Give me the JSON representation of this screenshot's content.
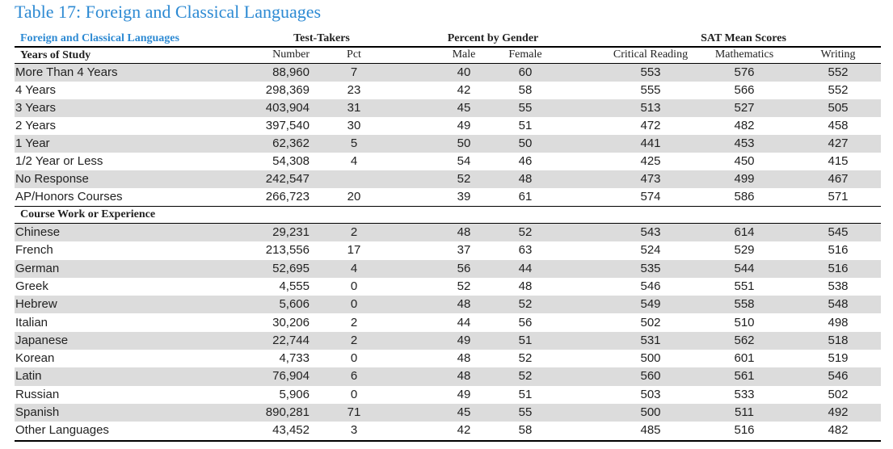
{
  "title": "Table 17: Foreign and Classical Languages",
  "header": {
    "group_label": "Foreign and Classical Languages",
    "groups": [
      "Test-Takers",
      "Percent by Gender",
      "SAT Mean Scores"
    ],
    "columns": [
      "Number",
      "Pct",
      "Male",
      "Female",
      "Critical Reading",
      "Mathematics",
      "Writing"
    ]
  },
  "sections": [
    {
      "label": "Years of Study",
      "rows": [
        [
          "More Than 4 Years",
          "88,960",
          "7",
          "40",
          "60",
          "553",
          "576",
          "552"
        ],
        [
          "4 Years",
          "298,369",
          "23",
          "42",
          "58",
          "555",
          "566",
          "552"
        ],
        [
          "3 Years",
          "403,904",
          "31",
          "45",
          "55",
          "513",
          "527",
          "505"
        ],
        [
          "2 Years",
          "397,540",
          "30",
          "49",
          "51",
          "472",
          "482",
          "458"
        ],
        [
          "1 Year",
          "62,362",
          "5",
          "50",
          "50",
          "441",
          "453",
          "427"
        ],
        [
          "1/2 Year or Less",
          "54,308",
          "4",
          "54",
          "46",
          "425",
          "450",
          "415"
        ],
        [
          "No Response",
          "242,547",
          null,
          "52",
          "48",
          "473",
          "499",
          "467"
        ],
        [
          "AP/Honors Courses",
          "266,723",
          "20",
          "39",
          "61",
          "574",
          "586",
          "571"
        ]
      ]
    },
    {
      "label": "Course Work or Experience",
      "rows": [
        [
          "Chinese",
          "29,231",
          "2",
          "48",
          "52",
          "543",
          "614",
          "545"
        ],
        [
          "French",
          "213,556",
          "17",
          "37",
          "63",
          "524",
          "529",
          "516"
        ],
        [
          "German",
          "52,695",
          "4",
          "56",
          "44",
          "535",
          "544",
          "516"
        ],
        [
          "Greek",
          "4,555",
          "0",
          "52",
          "48",
          "546",
          "551",
          "538"
        ],
        [
          "Hebrew",
          "5,606",
          "0",
          "48",
          "52",
          "549",
          "558",
          "548"
        ],
        [
          "Italian",
          "30,206",
          "2",
          "44",
          "56",
          "502",
          "510",
          "498"
        ],
        [
          "Japanese",
          "22,744",
          "2",
          "49",
          "51",
          "531",
          "562",
          "518"
        ],
        [
          "Korean",
          "4,733",
          "0",
          "48",
          "52",
          "500",
          "601",
          "519"
        ],
        [
          "Latin",
          "76,904",
          "6",
          "48",
          "52",
          "560",
          "561",
          "546"
        ],
        [
          "Russian",
          "5,906",
          "0",
          "49",
          "51",
          "503",
          "533",
          "502"
        ],
        [
          "Spanish",
          "890,281",
          "71",
          "45",
          "55",
          "500",
          "511",
          "492"
        ],
        [
          "Other Languages",
          "43,452",
          "3",
          "42",
          "58",
          "485",
          "516",
          "482"
        ]
      ]
    }
  ]
}
